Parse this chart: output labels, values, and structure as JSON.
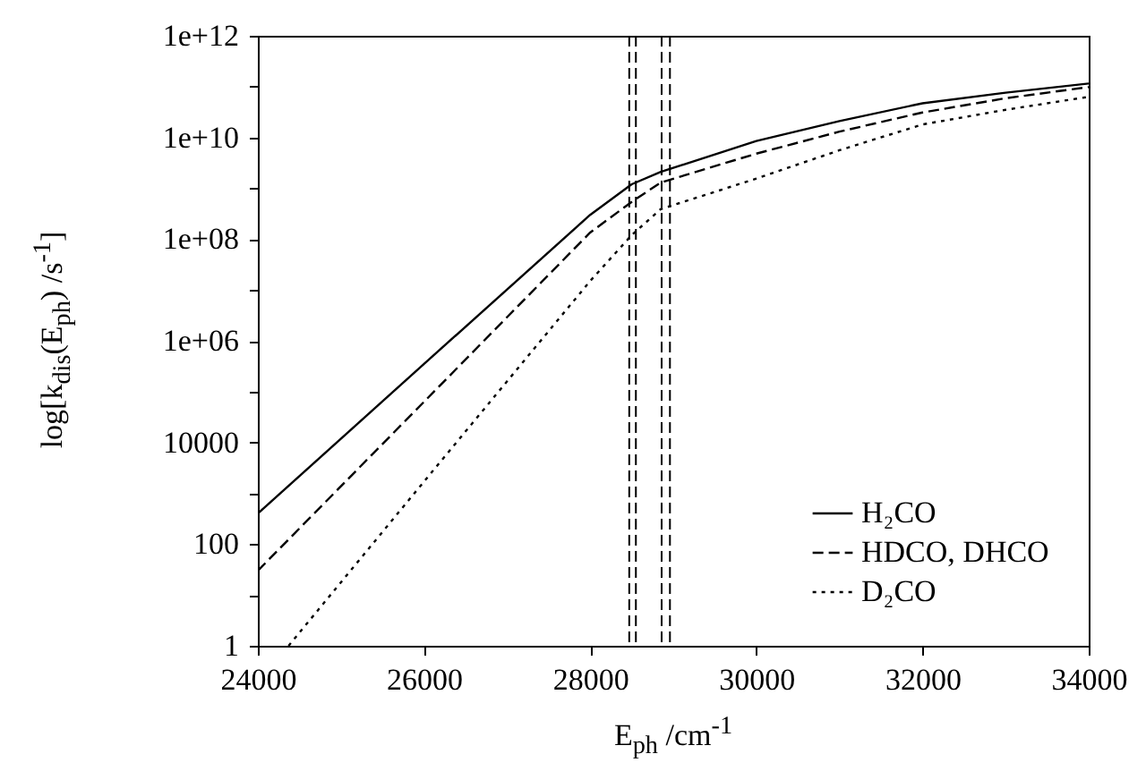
{
  "chart_data": {
    "type": "line",
    "xlabel": "E$_{ph}$ /cm$^{-1}$",
    "ylabel": "log[k$_{dis}$(E$_{ph}$) /s$^{-1}$]",
    "x": [
      24000,
      26000,
      28000,
      28500,
      28850,
      30000,
      31000,
      32000,
      33000,
      34000
    ],
    "series": [
      {
        "name": "H₂CO",
        "color": "#000000",
        "line_style": "solid",
        "values": [
          400,
          350000,
          300000000,
          1200000000,
          2100000000,
          8500000000,
          21000000000,
          47000000000,
          76000000000,
          115000000000
        ]
      },
      {
        "name": "HDCO, DHCO",
        "color": "#000000",
        "line_style": "dashed",
        "values": [
          30,
          63000,
          135000000,
          540000000,
          1300000000,
          4800000000,
          13000000000,
          31000000000,
          59000000000,
          98000000000
        ]
      },
      {
        "name": "D₂CO",
        "color": "#000000",
        "line_style": "dotted",
        "x": [
          24370,
          26000,
          28000,
          28500,
          28850,
          30000,
          31000,
          32000,
          33000,
          34000
        ],
        "values": [
          1,
          1700,
          15000000,
          120000000,
          390000000,
          1550000000,
          5600000000,
          18000000000,
          35000000000,
          63000000000
        ]
      }
    ],
    "ref_lines": [
      {
        "axis": "x",
        "value": 28470,
        "color": "#000000",
        "line_style": "dashed"
      },
      {
        "axis": "x",
        "value": 28550,
        "color": "#000000",
        "line_style": "dashed"
      },
      {
        "axis": "x",
        "value": 28860,
        "color": "#000000",
        "line_style": "dashed"
      },
      {
        "axis": "x",
        "value": 28960,
        "color": "#000000",
        "line_style": "dashed"
      }
    ],
    "log": "y",
    "xlim": [
      24000,
      34000
    ],
    "xticks": [
      24000,
      26000,
      28000,
      30000,
      32000,
      34000
    ],
    "ylim": [
      1,
      1000000000000
    ],
    "yticks": [
      1,
      {
        "value": 10,
        "label": null
      },
      100,
      {
        "value": 1000,
        "label": null
      },
      10000,
      {
        "value": 100000,
        "label": null
      },
      {
        "value": 1000000,
        "label": "1e+06"
      },
      {
        "value": 10000000,
        "label": null
      },
      {
        "value": 100000000,
        "label": "1e+08"
      },
      {
        "value": 1000000000,
        "label": null
      },
      {
        "value": 10000000000,
        "label": "1e+10"
      },
      {
        "value": 100000000000,
        "label": null
      },
      {
        "value": 1000000000000,
        "label": "1e+12"
      }
    ],
    "grid": false,
    "legend": "bottom right"
  }
}
